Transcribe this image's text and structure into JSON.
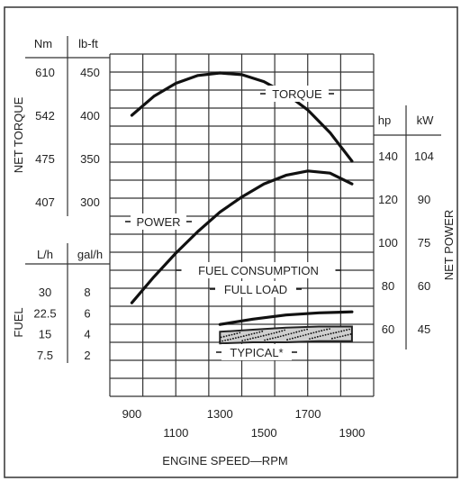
{
  "chart_data": {
    "type": "line",
    "xlabel": "ENGINE SPEED—RPM",
    "x_ticks_upper": [
      900,
      1300,
      1700
    ],
    "x_ticks_lower": [
      1100,
      1500,
      1900
    ],
    "xlim": [
      800,
      2000
    ],
    "left_axes": {
      "torque": {
        "title": "NET TORQUE",
        "unit_nm": "Nm",
        "unit_lbft": "lb-ft",
        "ticks_nm": [
          "610",
          "542",
          "475",
          "407"
        ],
        "ticks_lbft": [
          450,
          400,
          350,
          300
        ]
      },
      "fuel": {
        "title": "FUEL",
        "unit_lh": "L/h",
        "unit_galh": "gal/h",
        "ticks_lh": [
          "30",
          "22.5",
          "15",
          "7.5"
        ],
        "ticks_galh": [
          8,
          6,
          4,
          2
        ]
      }
    },
    "right_axis": {
      "title": "NET POWER",
      "unit_hp": "hp",
      "unit_kw": "kW",
      "ticks_hp": [
        140,
        120,
        100,
        80,
        60
      ],
      "ticks_kw": [
        "104",
        "90",
        "75",
        "60",
        "45"
      ]
    },
    "series": [
      {
        "name": "TORQUE",
        "axis": "lb-ft",
        "x": [
          900,
          1000,
          1100,
          1200,
          1300,
          1400,
          1500,
          1600,
          1700,
          1800,
          1900
        ],
        "y": [
          400,
          422,
          437,
          446,
          449,
          447,
          439,
          425,
          406,
          380,
          347
        ]
      },
      {
        "name": "POWER",
        "axis": "hp",
        "x": [
          900,
          1000,
          1100,
          1200,
          1300,
          1400,
          1500,
          1600,
          1700,
          1800,
          1900
        ],
        "y": [
          72,
          84,
          95,
          105,
          114,
          121,
          127,
          131,
          133,
          132,
          127
        ]
      },
      {
        "name": "FUEL CONSUMPTION FULL LOAD",
        "axis": "gal/h",
        "x": [
          1300,
          1450,
          1600,
          1750,
          1900
        ],
        "y": [
          4.9,
          5.4,
          5.8,
          6.0,
          6.1
        ]
      }
    ],
    "band": {
      "name": "TYPICAL*",
      "axis": "gal/h",
      "x": [
        1300,
        1450,
        1600,
        1750,
        1900
      ],
      "upper": [
        4.2,
        4.4,
        4.6,
        4.7,
        4.7
      ],
      "lower": [
        3.1,
        3.2,
        3.2,
        3.3,
        3.3
      ]
    },
    "annotation": "FUEL CONSUMPTION"
  }
}
